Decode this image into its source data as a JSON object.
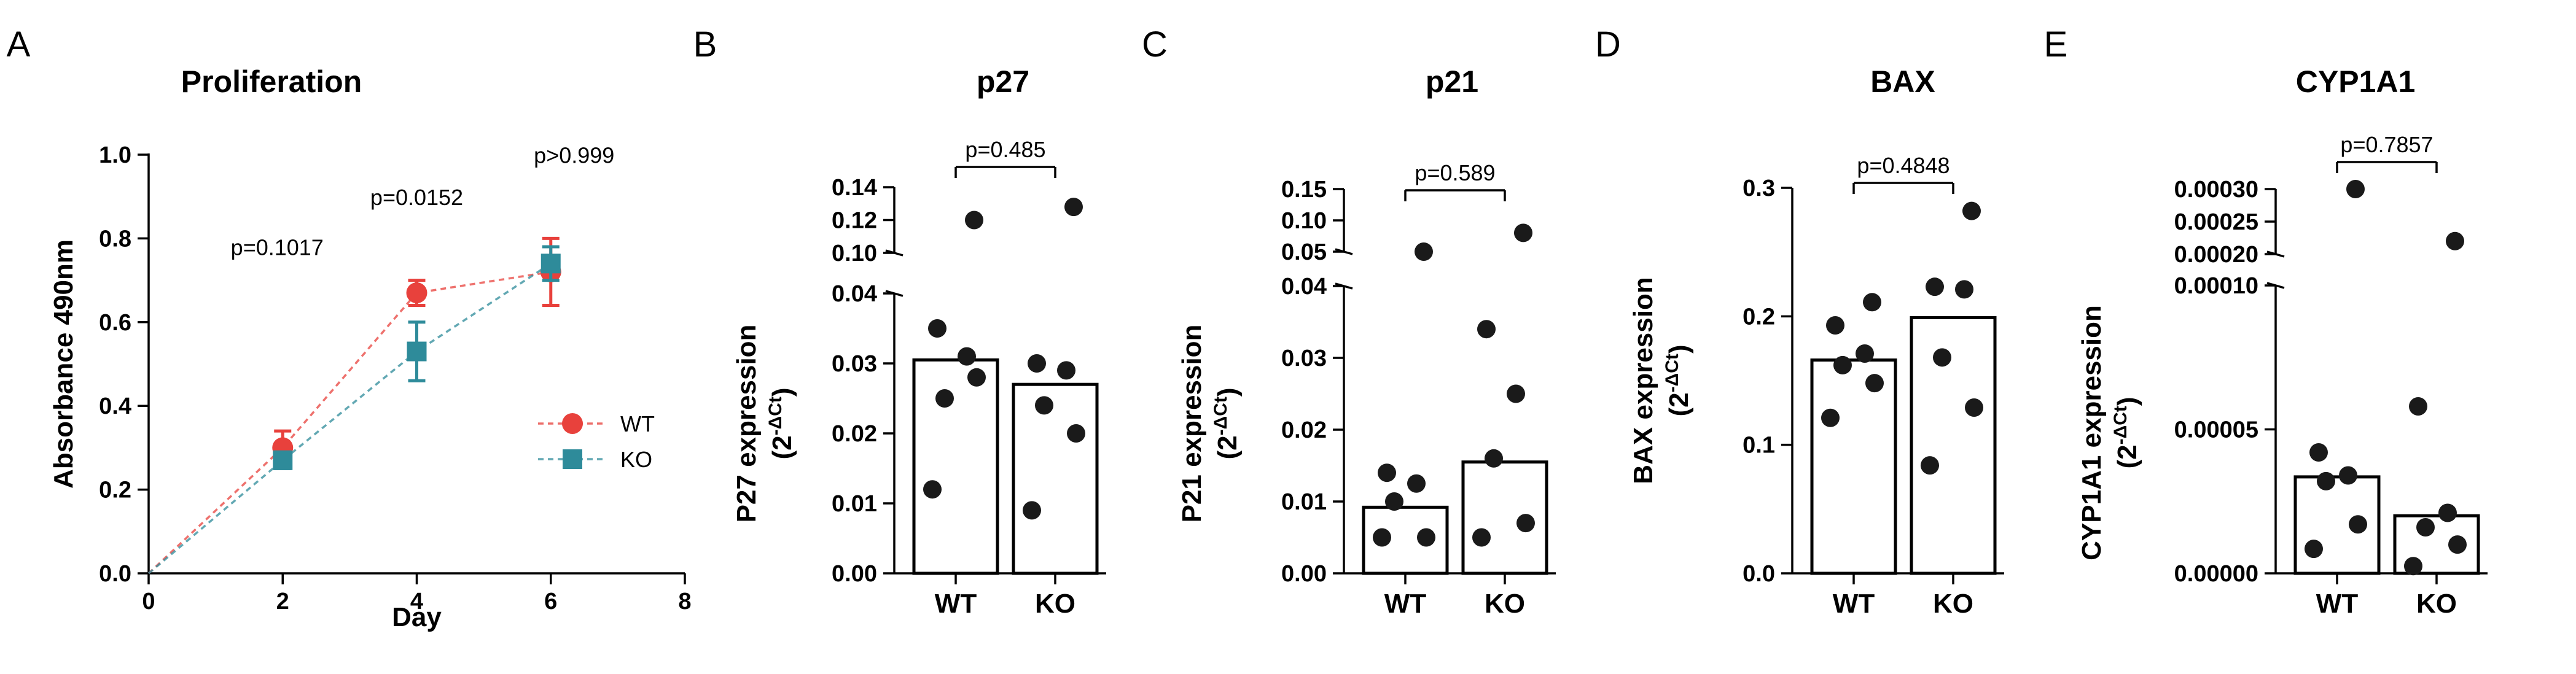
{
  "figure_title": "",
  "chart_data": [
    {
      "panel": "A",
      "type": "line",
      "title": "Proliferation",
      "xlabel": "Day",
      "ylabel": "Absorbance 490nm",
      "xlim": [
        0,
        8
      ],
      "ylim": [
        0,
        1.0
      ],
      "xticks": [
        0,
        2,
        4,
        6,
        8
      ],
      "yticks": [
        0.0,
        0.2,
        0.4,
        0.6,
        0.8,
        1.0
      ],
      "xtick_labels": [
        "0",
        "2",
        "4",
        "6",
        "8"
      ],
      "ytick_labels": [
        "0.0",
        "0.2",
        "0.4",
        "0.6",
        "0.8",
        "1.0"
      ],
      "series": [
        {
          "name": "WT",
          "color": "#e8413c",
          "marker": "circle",
          "x": [
            0,
            2,
            4,
            6
          ],
          "y": [
            0,
            0.3,
            0.67,
            0.72
          ],
          "err": [
            0,
            0.04,
            0.03,
            0.08
          ]
        },
        {
          "name": "KO",
          "color": "#2e8b9a",
          "marker": "square",
          "x": [
            0,
            2,
            4,
            6
          ],
          "y": [
            0,
            0.27,
            0.53,
            0.74
          ],
          "err": [
            0,
            0.02,
            0.07,
            0.04
          ]
        }
      ],
      "annotations": [
        {
          "text": "p=0.1017",
          "x": 2,
          "y": 0.76
        },
        {
          "text": "p=0.0152",
          "x": 4,
          "y": 0.88
        },
        {
          "text": "p>0.999",
          "x": 6,
          "y": 0.98
        }
      ],
      "legend": [
        "WT",
        "KO"
      ]
    },
    {
      "panel": "B",
      "type": "bar",
      "title": "p27",
      "ylabel": "P27 expression",
      "ylabel_unit": "(2-ΔCt)",
      "categories": [
        "WT",
        "KO"
      ],
      "values": [
        0.0305,
        0.027
      ],
      "points": [
        [
          0.012,
          0.028,
          0.025,
          0.031,
          0.035,
          0.12
        ],
        [
          0.009,
          0.02,
          0.024,
          0.029,
          0.03,
          0.128
        ]
      ],
      "lower_ylim": [
        0,
        0.04
      ],
      "lower_yticks": [
        0.0,
        0.01,
        0.02,
        0.03,
        0.04
      ],
      "lower_ytick_labels": [
        "0.00",
        "0.01",
        "0.02",
        "0.03",
        "0.04"
      ],
      "upper_ylim": [
        0.1,
        0.14
      ],
      "upper_yticks": [
        0.1,
        0.12,
        0.14
      ],
      "upper_ytick_labels": [
        "0.10",
        "0.12",
        "0.14"
      ],
      "pvalue": "p=0.485"
    },
    {
      "panel": "C",
      "type": "bar",
      "title": "p21",
      "ylabel": "P21 expression",
      "ylabel_unit": "(2-ΔCt)",
      "categories": [
        "WT",
        "KO"
      ],
      "values": [
        0.0092,
        0.0155
      ],
      "points": [
        [
          0.005,
          0.005,
          0.01,
          0.0125,
          0.014,
          0.05
        ],
        [
          0.005,
          0.007,
          0.016,
          0.025,
          0.034,
          0.08
        ]
      ],
      "lower_ylim": [
        0,
        0.04
      ],
      "lower_yticks": [
        0.0,
        0.01,
        0.02,
        0.03,
        0.04
      ],
      "lower_ytick_labels": [
        "0.00",
        "0.01",
        "0.02",
        "0.03",
        "0.04"
      ],
      "upper_ylim": [
        0.05,
        0.15
      ],
      "upper_yticks": [
        0.05,
        0.1,
        0.15
      ],
      "upper_ytick_labels": [
        "0.05",
        "0.10",
        "0.15"
      ],
      "pvalue": "p=0.589"
    },
    {
      "panel": "D",
      "type": "bar",
      "title": "BAX",
      "ylabel": "BAX expression",
      "ylabel_unit": "(2-ΔCt)",
      "categories": [
        "WT",
        "KO"
      ],
      "values": [
        0.166,
        0.199
      ],
      "points": [
        [
          0.121,
          0.148,
          0.162,
          0.171,
          0.193,
          0.211
        ],
        [
          0.084,
          0.129,
          0.168,
          0.221,
          0.223,
          0.282
        ]
      ],
      "ylim": [
        0,
        0.3
      ],
      "yticks": [
        0.0,
        0.1,
        0.2,
        0.3
      ],
      "ytick_labels": [
        "0.0",
        "0.1",
        "0.2",
        "0.3"
      ],
      "pvalue": "p=0.4848"
    },
    {
      "panel": "E",
      "type": "bar",
      "title": "CYP1A1",
      "ylabel": "CYP1A1 expression",
      "ylabel_unit": "(2-ΔCt)",
      "categories": [
        "WT",
        "KO"
      ],
      "values": [
        3.35e-05,
        2e-05
      ],
      "points": [
        [
          8.5e-06,
          1.7e-05,
          3.2e-05,
          3.4e-05,
          4.2e-05,
          0.0003
        ],
        [
          2.5e-06,
          1e-05,
          1.6e-05,
          2.1e-05,
          5.8e-05,
          0.00022
        ]
      ],
      "lower_ylim": [
        0,
        0.0001
      ],
      "lower_yticks": [
        0,
        5e-05,
        0.0001
      ],
      "lower_ytick_labels": [
        "0.00000",
        "0.00005",
        "0.00010"
      ],
      "upper_ylim": [
        0.0002,
        0.0003
      ],
      "upper_yticks": [
        0.0002,
        0.00025,
        0.0003
      ],
      "upper_ytick_labels": [
        "0.00020",
        "0.00025",
        "0.00030"
      ],
      "pvalue": "p=0.7857"
    }
  ]
}
